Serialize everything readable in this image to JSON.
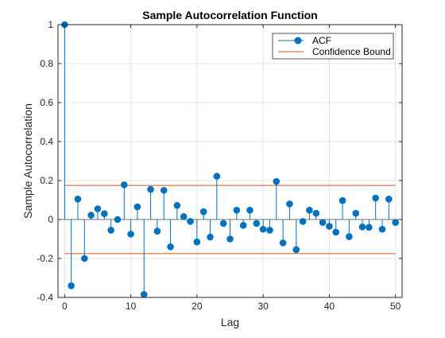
{
  "chart_data": {
    "type": "stem",
    "title": "Sample Autocorrelation Function",
    "xlabel": "Lag",
    "ylabel": "Sample Autocorrelation",
    "xlim": [
      -1,
      51
    ],
    "ylim": [
      -0.4,
      1
    ],
    "xticks": [
      0,
      10,
      20,
      30,
      40,
      50
    ],
    "xtick_labels": [
      "0",
      "10",
      "20",
      "30",
      "40",
      "50"
    ],
    "yticks": [
      -0.4,
      -0.2,
      0,
      0.2,
      0.4,
      0.6,
      0.8,
      1
    ],
    "ytick_labels": [
      "-0.4",
      "-0.2",
      "0",
      "0.2",
      "0.4",
      "0.6",
      "0.8",
      "1"
    ],
    "grid": true,
    "legend_position": "top-right",
    "series": [
      {
        "name": "ACF",
        "color": "#0072BD",
        "x": [
          0,
          1,
          2,
          3,
          4,
          5,
          6,
          7,
          8,
          9,
          10,
          11,
          12,
          13,
          14,
          15,
          16,
          17,
          18,
          19,
          20,
          21,
          22,
          23,
          24,
          25,
          26,
          27,
          28,
          29,
          30,
          31,
          32,
          33,
          34,
          35,
          36,
          37,
          38,
          39,
          40,
          41,
          42,
          43,
          44,
          45,
          46,
          47,
          48,
          49,
          50
        ],
        "y": [
          1.0,
          -0.34,
          0.105,
          -0.2,
          0.022,
          0.055,
          0.03,
          -0.055,
          0.0,
          0.178,
          -0.075,
          0.065,
          -0.385,
          0.155,
          -0.06,
          0.15,
          -0.14,
          0.072,
          0.015,
          -0.01,
          -0.115,
          0.04,
          -0.09,
          0.222,
          -0.02,
          -0.1,
          0.048,
          -0.03,
          0.048,
          -0.02,
          -0.05,
          -0.055,
          0.195,
          -0.12,
          0.08,
          -0.155,
          -0.01,
          0.048,
          0.032,
          -0.015,
          -0.035,
          -0.065,
          0.097,
          -0.088,
          0.032,
          -0.038,
          -0.04,
          0.11,
          -0.05,
          0.105,
          -0.015
        ]
      },
      {
        "name": "Confidence Bound",
        "color": "#D95319",
        "upper": 0.175,
        "lower": -0.175
      }
    ]
  }
}
